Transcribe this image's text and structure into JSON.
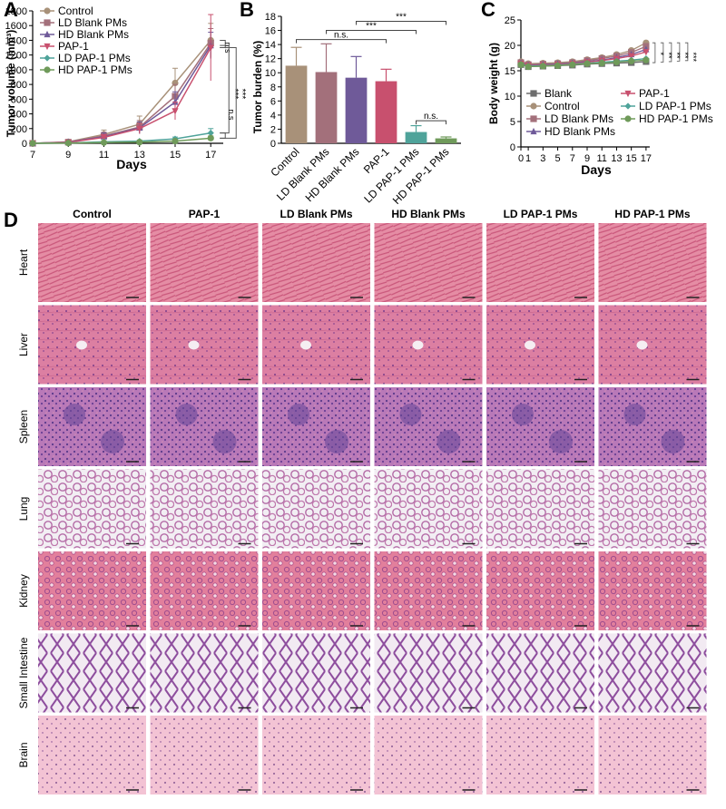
{
  "panel_labels": {
    "a": "A",
    "b": "B",
    "c": "C",
    "d": "D"
  },
  "chart_data": [
    {
      "panel": "A",
      "type": "line",
      "ylabel": "Tumor volume (mm³)",
      "xlabel": "Days",
      "x": [
        7,
        9,
        11,
        13,
        15,
        17
      ],
      "xticks": [
        "7",
        "9",
        "11",
        "13",
        "15",
        "17"
      ],
      "ylim": [
        0,
        1800
      ],
      "yticks": [
        "0",
        "200",
        "400",
        "600",
        "800",
        "1000",
        "1200",
        "1400",
        "1600",
        "1800"
      ],
      "series": [
        {
          "name": "Control",
          "color": "#a89179",
          "marker": "circle",
          "values": [
            0,
            20,
            120,
            260,
            820,
            1400
          ],
          "errors": [
            0,
            10,
            60,
            110,
            200,
            230
          ]
        },
        {
          "name": "LD Blank PMs",
          "color": "#a3707b",
          "marker": "square",
          "values": [
            0,
            15,
            100,
            220,
            640,
            1360
          ],
          "errors": [
            0,
            8,
            50,
            90,
            160,
            200
          ]
        },
        {
          "name": "HD Blank PMs",
          "color": "#6f5a99",
          "marker": "triangle-up",
          "values": [
            0,
            15,
            90,
            210,
            560,
            1330
          ],
          "errors": [
            0,
            8,
            50,
            80,
            140,
            180
          ]
        },
        {
          "name": "PAP-1",
          "color": "#c8506e",
          "marker": "triangle-down",
          "values": [
            0,
            12,
            80,
            200,
            440,
            1300
          ],
          "errors": [
            0,
            8,
            40,
            70,
            120,
            450
          ]
        },
        {
          "name": "LD PAP-1 PMs",
          "color": "#4fa39a",
          "marker": "diamond",
          "values": [
            0,
            5,
            20,
            30,
            60,
            140
          ],
          "errors": [
            0,
            3,
            10,
            15,
            25,
            60
          ]
        },
        {
          "name": "HD PAP-1 PMs",
          "color": "#6f9a5a",
          "marker": "circle",
          "values": [
            0,
            3,
            10,
            15,
            30,
            70
          ],
          "errors": [
            0,
            2,
            6,
            8,
            15,
            30
          ]
        }
      ],
      "annotations": [
        "n.s",
        "***",
        "***",
        "n.s"
      ]
    },
    {
      "panel": "B",
      "type": "bar",
      "ylabel": "Tumor burden (%)",
      "ylim": [
        0,
        18
      ],
      "yticks": [
        "0",
        "2",
        "4",
        "6",
        "8",
        "10",
        "12",
        "14",
        "16",
        "18"
      ],
      "categories": [
        "Control",
        "LD Blank PMs",
        "HD Blank PMs",
        "PAP-1",
        "LD PAP-1 PMs",
        "HD PAP-1 PMs"
      ],
      "values": [
        11.0,
        10.1,
        9.3,
        8.8,
        1.6,
        0.7
      ],
      "errors": [
        2.6,
        4.0,
        3.0,
        1.7,
        0.9,
        0.2
      ],
      "colors": [
        "#a89179",
        "#a3707b",
        "#6f5a99",
        "#c8506e",
        "#4fa39a",
        "#6f9a5a"
      ],
      "annotations": [
        "***",
        "***",
        "n.s.",
        "n.s."
      ]
    },
    {
      "panel": "C",
      "type": "line",
      "ylabel": "Body weight (g)",
      "xlabel": "Days",
      "x": [
        0,
        1,
        3,
        5,
        7,
        9,
        11,
        13,
        15,
        17
      ],
      "xticks": [
        "0",
        "1",
        "3",
        "5",
        "7",
        "9",
        "11",
        "13",
        "15",
        "17"
      ],
      "ylim": [
        0,
        25
      ],
      "yticks": [
        "0",
        "5",
        "10",
        "15",
        "20",
        "25"
      ],
      "series": [
        {
          "name": "Blank",
          "color": "#6e6e6e",
          "marker": "square",
          "values": [
            16.2,
            15.8,
            15.9,
            16.0,
            16.1,
            16.3,
            16.4,
            16.5,
            16.6,
            16.8
          ]
        },
        {
          "name": "Control",
          "color": "#a89179",
          "marker": "circle",
          "values": [
            16.8,
            16.4,
            16.5,
            16.6,
            16.8,
            17.2,
            17.6,
            18.2,
            19.0,
            20.5
          ]
        },
        {
          "name": "LD Blank PMs",
          "color": "#a3707b",
          "marker": "square",
          "values": [
            16.6,
            16.2,
            16.3,
            16.4,
            16.6,
            17.0,
            17.4,
            17.9,
            18.6,
            19.8
          ]
        },
        {
          "name": "HD Blank PMs",
          "color": "#6f5a99",
          "marker": "triangle-up",
          "values": [
            16.5,
            16.1,
            16.2,
            16.3,
            16.5,
            16.8,
            17.1,
            17.6,
            18.2,
            19.2
          ]
        },
        {
          "name": "PAP-1",
          "color": "#c8506e",
          "marker": "triangle-down",
          "values": [
            16.4,
            16.0,
            16.1,
            16.2,
            16.4,
            16.7,
            17.0,
            17.4,
            17.9,
            18.7
          ]
        },
        {
          "name": "LD PAP-1 PMs",
          "color": "#4fa39a",
          "marker": "diamond",
          "values": [
            16.3,
            15.9,
            16.0,
            16.1,
            16.3,
            16.5,
            16.7,
            16.9,
            17.1,
            17.4
          ]
        },
        {
          "name": "HD PAP-1 PMs",
          "color": "#6f9a5a",
          "marker": "circle",
          "values": [
            16.2,
            15.8,
            15.9,
            16.0,
            16.2,
            16.4,
            16.5,
            16.7,
            16.9,
            17.1
          ]
        }
      ],
      "annotations": [
        "*",
        "**",
        "**",
        "**",
        "***"
      ]
    }
  ],
  "histology": {
    "columns": [
      "Control",
      "PAP-1",
      "LD Blank PMs",
      "HD Blank PMs",
      "LD PAP-1 PMs",
      "HD PAP-1 PMs"
    ],
    "rows": [
      "Heart",
      "Liver",
      "Spleen",
      "Lung",
      "Kidney",
      "Small Intestine",
      "Brain"
    ]
  }
}
